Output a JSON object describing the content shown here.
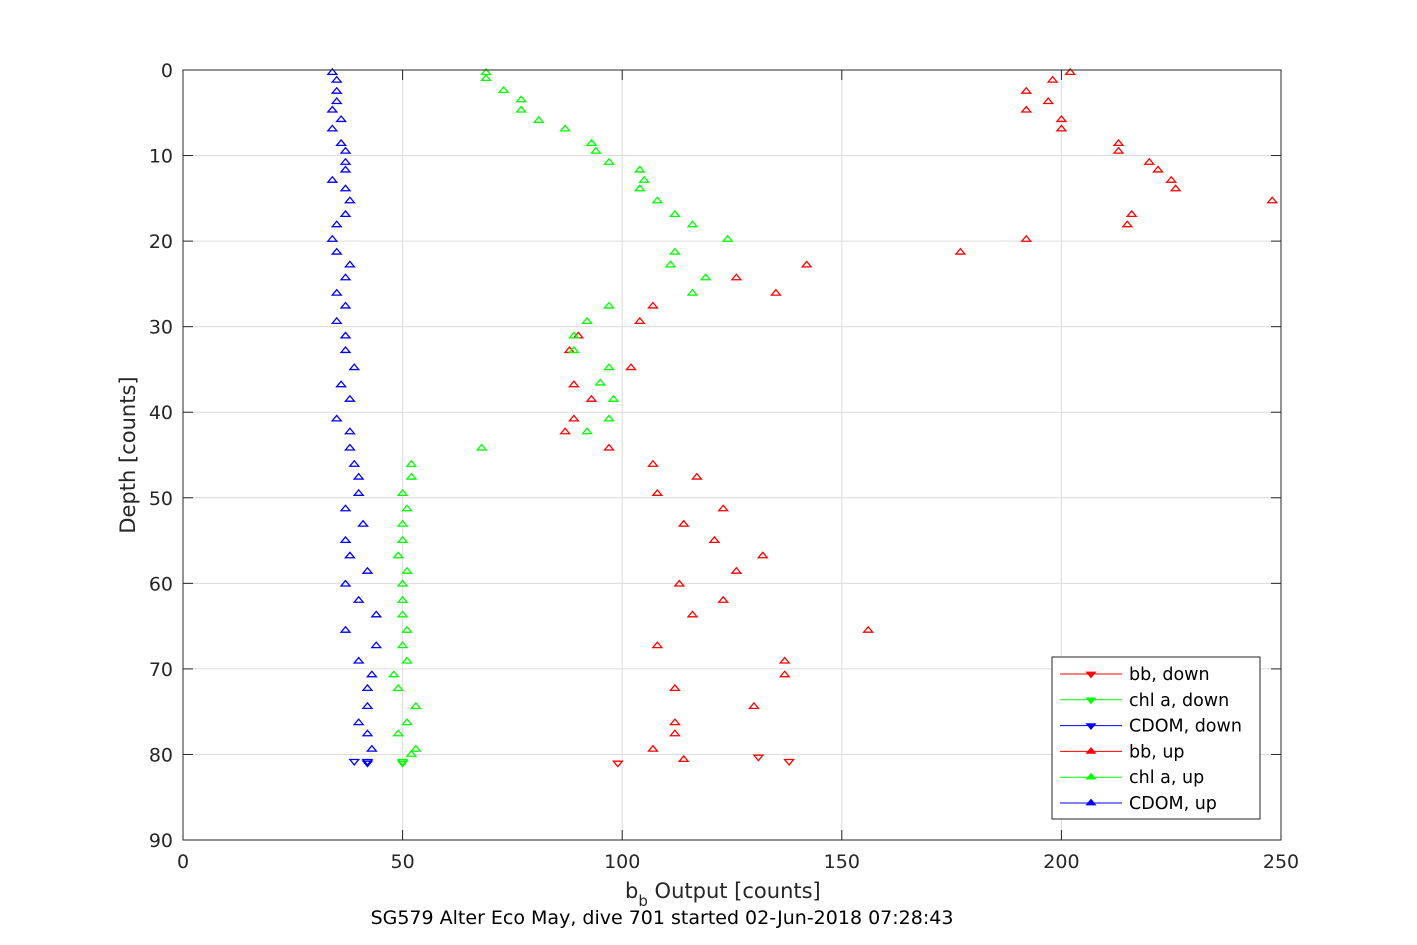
{
  "chart_data": {
    "type": "scatter",
    "title": "",
    "xlabel_main": "b",
    "xlabel_sub": "b",
    "xlabel_rest": " Output [counts]",
    "ylabel": "Depth [counts]",
    "caption": "SG579 Alter Eco May, dive 701 started 02-Jun-2018 07:28:43",
    "xlim": [
      0,
      250
    ],
    "ylim": [
      0,
      90
    ],
    "y_reversed": true,
    "grid": true,
    "legend_position": "bottom-right",
    "xticks": [
      "0",
      "50",
      "100",
      "150",
      "200",
      "250"
    ],
    "yticks": [
      "0",
      "10",
      "20",
      "30",
      "40",
      "50",
      "60",
      "70",
      "80",
      "90"
    ],
    "series": [
      {
        "name": "bb, down",
        "color": "#ff0000",
        "marker": "triangle-down",
        "points": [
          [
            99,
            81.0
          ],
          [
            131,
            80.3
          ],
          [
            138,
            80.8
          ]
        ]
      },
      {
        "name": "chl a, down",
        "color": "#00ff00",
        "marker": "triangle-down",
        "points": [
          [
            50,
            80.8
          ],
          [
            50,
            81.0
          ]
        ]
      },
      {
        "name": "CDOM, down",
        "color": "#0000ff",
        "marker": "triangle-down",
        "points": [
          [
            39,
            80.8
          ],
          [
            42,
            80.8
          ],
          [
            42,
            81.0
          ]
        ]
      },
      {
        "name": "bb, up",
        "color": "#ff0000",
        "marker": "triangle-up",
        "points": [
          [
            202,
            0.3
          ],
          [
            198,
            1.2
          ],
          [
            192,
            2.5
          ],
          [
            197,
            3.7
          ],
          [
            192,
            4.7
          ],
          [
            200,
            5.8
          ],
          [
            200,
            6.9
          ],
          [
            213,
            8.6
          ],
          [
            213,
            9.5
          ],
          [
            220,
            10.8
          ],
          [
            222,
            11.7
          ],
          [
            225,
            12.9
          ],
          [
            226,
            13.9
          ],
          [
            248,
            15.3
          ],
          [
            216,
            16.9
          ],
          [
            215,
            18.1
          ],
          [
            192,
            19.8
          ],
          [
            177,
            21.3
          ],
          [
            142,
            22.8
          ],
          [
            126,
            24.3
          ],
          [
            135,
            26.1
          ],
          [
            107,
            27.6
          ],
          [
            104,
            29.4
          ],
          [
            90,
            31.1
          ],
          [
            88,
            32.8
          ],
          [
            102,
            34.8
          ],
          [
            89,
            36.8
          ],
          [
            93,
            38.5
          ],
          [
            89,
            40.8
          ],
          [
            87,
            42.3
          ],
          [
            97,
            44.2
          ],
          [
            107,
            46.1
          ],
          [
            117,
            47.6
          ],
          [
            108,
            49.5
          ],
          [
            123,
            51.3
          ],
          [
            114,
            53.1
          ],
          [
            121,
            55.0
          ],
          [
            132,
            56.8
          ],
          [
            126,
            58.6
          ],
          [
            113,
            60.1
          ],
          [
            123,
            62.0
          ],
          [
            116,
            63.7
          ],
          [
            156,
            65.5
          ],
          [
            108,
            67.3
          ],
          [
            137,
            69.1
          ],
          [
            137,
            70.7
          ],
          [
            112,
            72.3
          ],
          [
            130,
            74.4
          ],
          [
            112,
            76.3
          ],
          [
            112,
            77.6
          ],
          [
            107,
            79.4
          ],
          [
            114,
            80.6
          ]
        ]
      },
      {
        "name": "chl a, up",
        "color": "#00ff00",
        "marker": "triangle-up",
        "points": [
          [
            69,
            0.3
          ],
          [
            69,
            1.0
          ],
          [
            73,
            2.4
          ],
          [
            77,
            3.5
          ],
          [
            77,
            4.7
          ],
          [
            81,
            5.9
          ],
          [
            87,
            6.9
          ],
          [
            93,
            8.6
          ],
          [
            94,
            9.5
          ],
          [
            97,
            10.8
          ],
          [
            104,
            11.7
          ],
          [
            105,
            12.9
          ],
          [
            104,
            13.9
          ],
          [
            108,
            15.3
          ],
          [
            112,
            16.9
          ],
          [
            116,
            18.1
          ],
          [
            124,
            19.8
          ],
          [
            112,
            21.3
          ],
          [
            111,
            22.8
          ],
          [
            119,
            24.3
          ],
          [
            116,
            26.1
          ],
          [
            97,
            27.6
          ],
          [
            92,
            29.4
          ],
          [
            89,
            31.1
          ],
          [
            89,
            32.8
          ],
          [
            97,
            34.8
          ],
          [
            95,
            36.6
          ],
          [
            98,
            38.5
          ],
          [
            97,
            40.8
          ],
          [
            92,
            42.3
          ],
          [
            68,
            44.2
          ],
          [
            52,
            46.1
          ],
          [
            52,
            47.6
          ],
          [
            50,
            49.5
          ],
          [
            51,
            51.3
          ],
          [
            50,
            53.1
          ],
          [
            50,
            55.0
          ],
          [
            49,
            56.8
          ],
          [
            51,
            58.6
          ],
          [
            50,
            60.1
          ],
          [
            50,
            62.0
          ],
          [
            50,
            63.7
          ],
          [
            51,
            65.5
          ],
          [
            50,
            67.3
          ],
          [
            51,
            69.1
          ],
          [
            48,
            70.7
          ],
          [
            49,
            72.3
          ],
          [
            53,
            74.4
          ],
          [
            51,
            76.3
          ],
          [
            49,
            77.6
          ],
          [
            53,
            79.4
          ],
          [
            52,
            80.0
          ]
        ]
      },
      {
        "name": "CDOM, up",
        "color": "#0000ff",
        "marker": "triangle-up",
        "points": [
          [
            34,
            0.3
          ],
          [
            35,
            1.2
          ],
          [
            35,
            2.5
          ],
          [
            35,
            3.7
          ],
          [
            34,
            4.7
          ],
          [
            36,
            5.8
          ],
          [
            34,
            6.9
          ],
          [
            36,
            8.6
          ],
          [
            37,
            9.5
          ],
          [
            37,
            10.8
          ],
          [
            37,
            11.7
          ],
          [
            34,
            12.9
          ],
          [
            37,
            13.9
          ],
          [
            38,
            15.3
          ],
          [
            37,
            16.9
          ],
          [
            35,
            18.1
          ],
          [
            34,
            19.8
          ],
          [
            35,
            21.3
          ],
          [
            38,
            22.8
          ],
          [
            37,
            24.3
          ],
          [
            35,
            26.1
          ],
          [
            37,
            27.6
          ],
          [
            35,
            29.4
          ],
          [
            37,
            31.1
          ],
          [
            37,
            32.8
          ],
          [
            39,
            34.8
          ],
          [
            36,
            36.8
          ],
          [
            38,
            38.5
          ],
          [
            35,
            40.8
          ],
          [
            38,
            42.3
          ],
          [
            38,
            44.2
          ],
          [
            39,
            46.1
          ],
          [
            40,
            47.6
          ],
          [
            40,
            49.5
          ],
          [
            37,
            51.3
          ],
          [
            41,
            53.1
          ],
          [
            37,
            55.0
          ],
          [
            38,
            56.8
          ],
          [
            42,
            58.6
          ],
          [
            37,
            60.1
          ],
          [
            40,
            62.0
          ],
          [
            44,
            63.7
          ],
          [
            37,
            65.5
          ],
          [
            44,
            67.3
          ],
          [
            40,
            69.1
          ],
          [
            43,
            70.7
          ],
          [
            42,
            72.3
          ],
          [
            42,
            74.4
          ],
          [
            40,
            76.3
          ],
          [
            42,
            77.6
          ],
          [
            43,
            79.4
          ]
        ]
      }
    ]
  }
}
